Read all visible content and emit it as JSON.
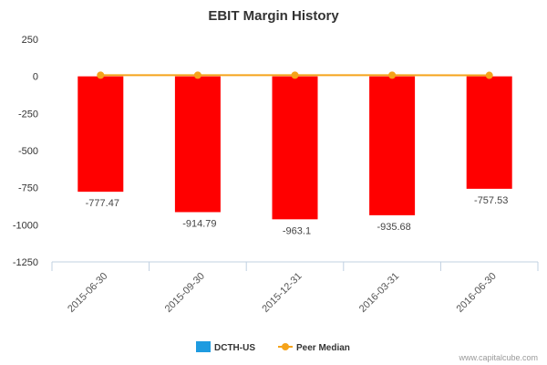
{
  "chart_data": {
    "type": "bar",
    "title": "EBIT Margin History",
    "categories": [
      "2015-06-30",
      "2015-09-30",
      "2015-12-31",
      "2016-03-31",
      "2016-06-30"
    ],
    "series": [
      {
        "name": "DCTH-US",
        "type": "bar",
        "values": [
          -777.47,
          -914.79,
          -963.1,
          -935.68,
          -757.53
        ],
        "labels": [
          "-777.47",
          "-914.79",
          "-963.1",
          "-935.68",
          "-757.53"
        ],
        "legend_color": "#1e9be0",
        "bar_color": "#ff0000"
      },
      {
        "name": "Peer Median",
        "type": "line",
        "values": [
          8,
          8,
          8,
          8,
          7
        ],
        "color": "#f5a31a"
      }
    ],
    "xlabel": "",
    "ylabel": "",
    "ylim": [
      -1250,
      250
    ],
    "yticks": [
      250,
      0,
      -250,
      -500,
      -750,
      -1000,
      -1250
    ],
    "ytick_labels": [
      "250",
      "0",
      "-250",
      "-500",
      "-750",
      "-1000",
      "-1250"
    ],
    "grid": false,
    "legend_position": "bottom-center"
  },
  "credit": "www.capitalcube.com"
}
